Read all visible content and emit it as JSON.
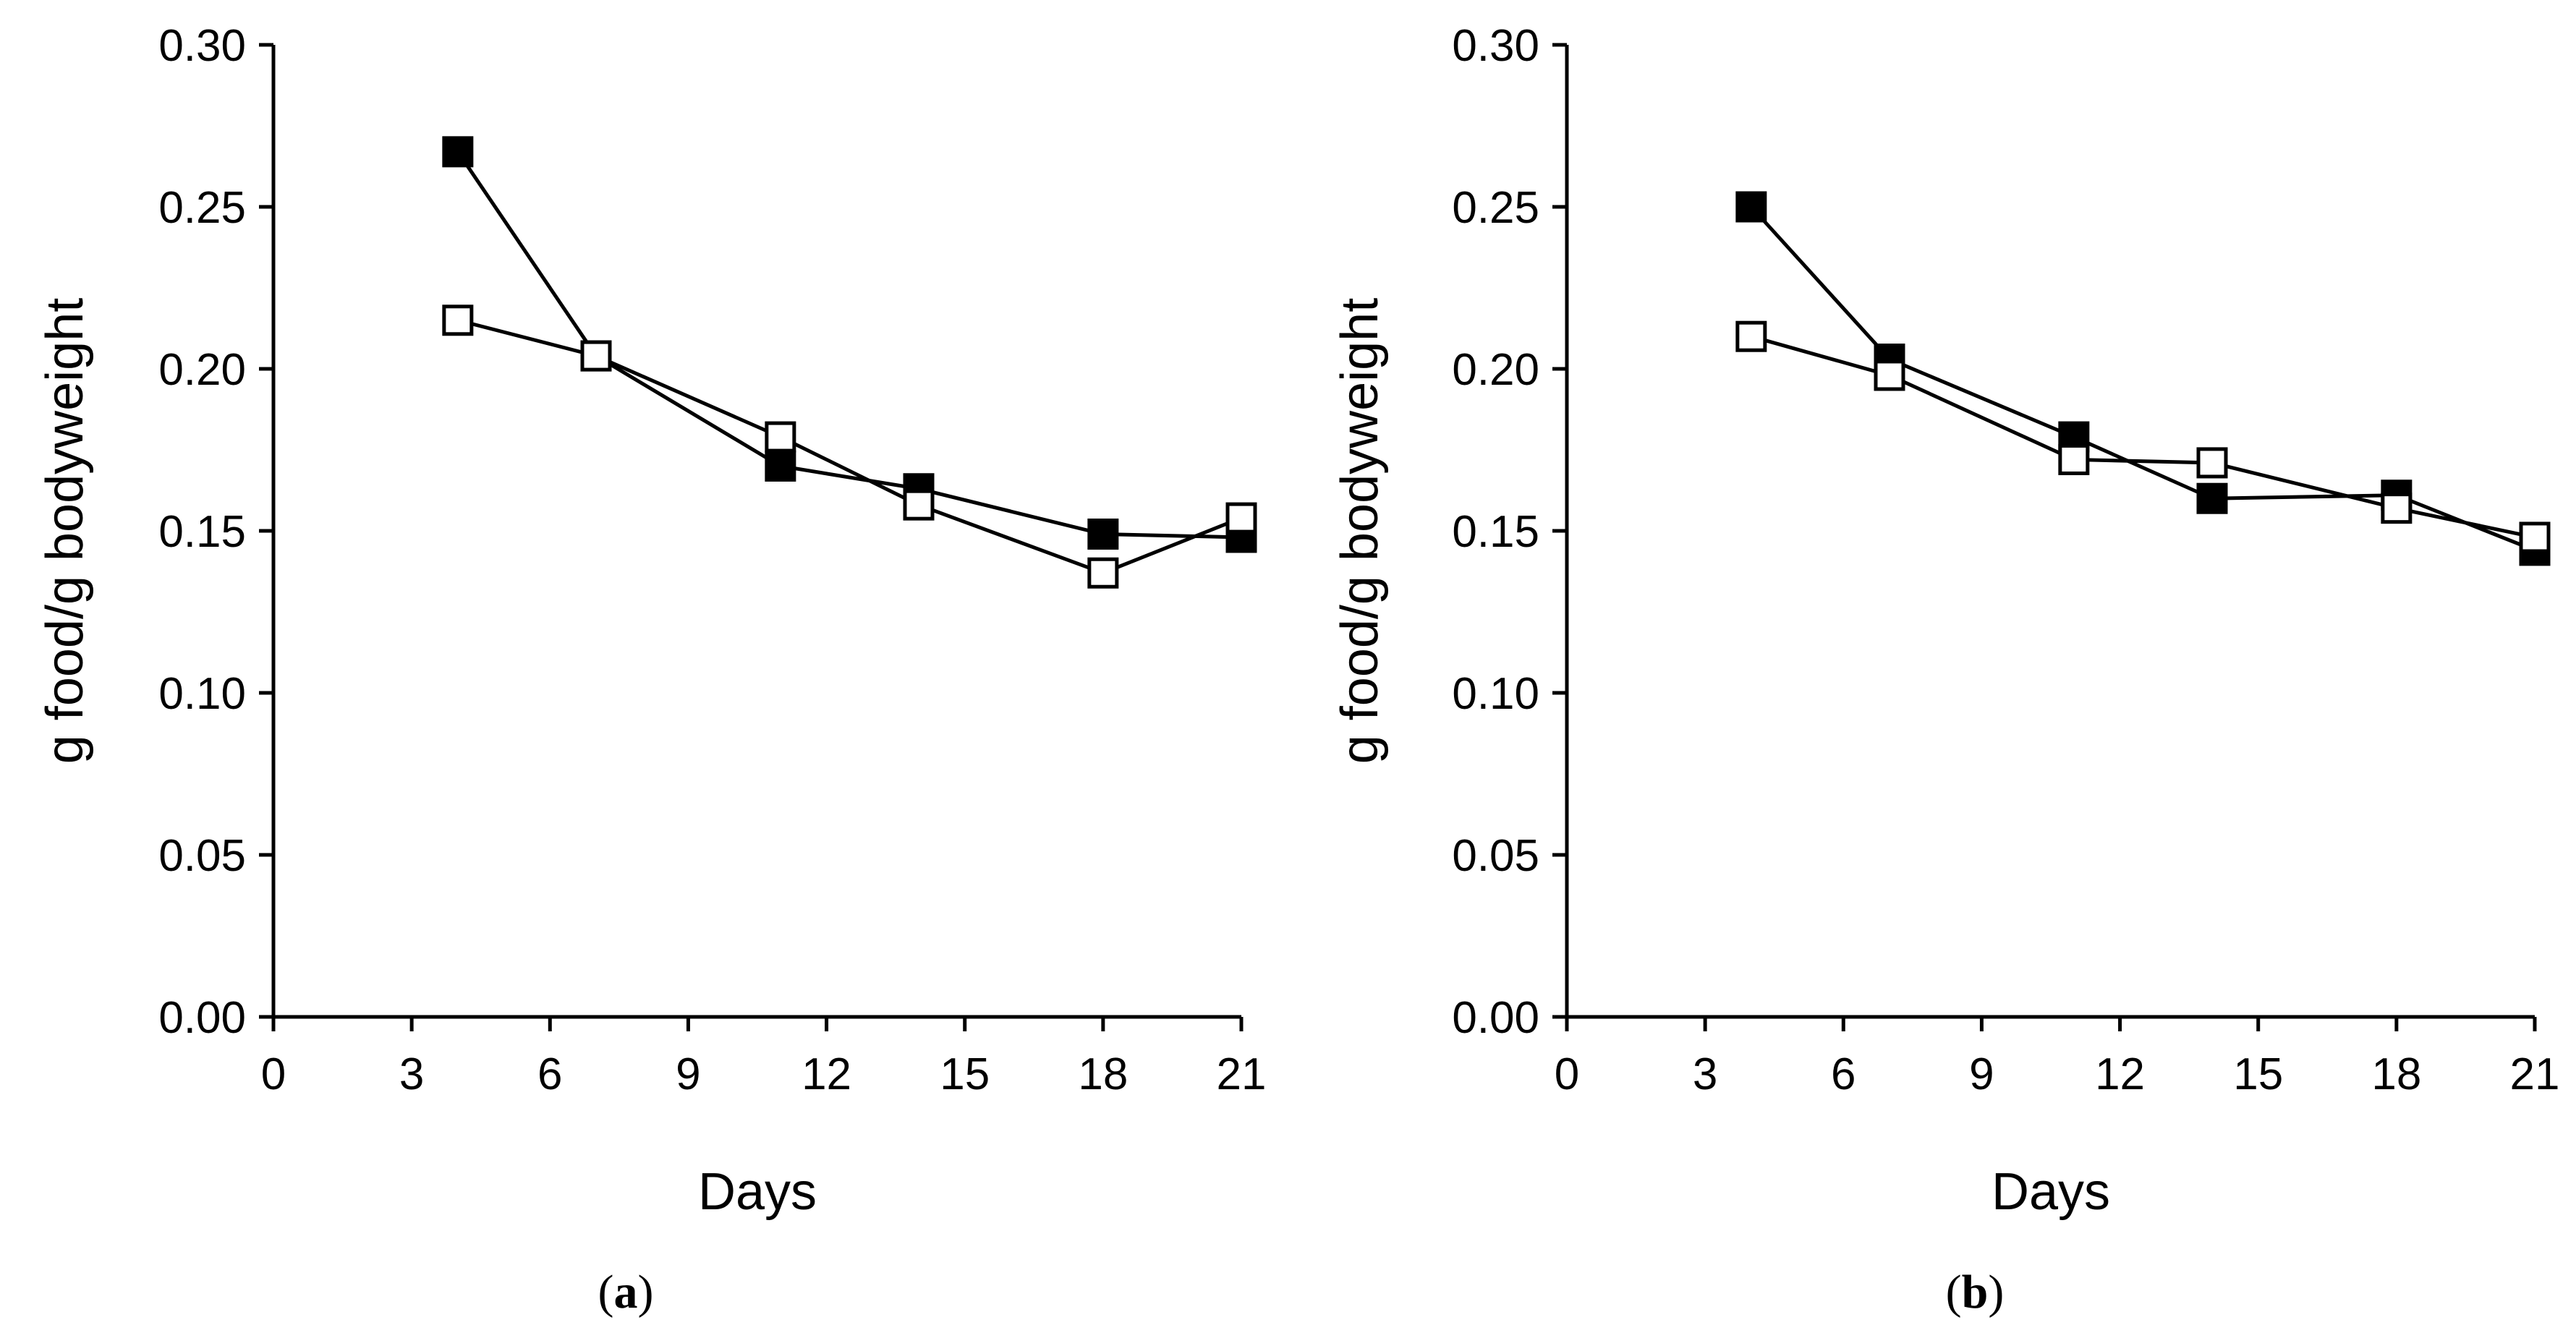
{
  "chart_data": [
    {
      "type": "line",
      "panel_label": "(a)",
      "panel_letter": "a",
      "xlabel": "Days",
      "ylabel": "g food/g bodyweight",
      "xlim": [
        0,
        21
      ],
      "ylim": [
        0,
        0.3
      ],
      "x_ticks": [
        0,
        3,
        6,
        9,
        12,
        15,
        18,
        21
      ],
      "x_tick_labels": [
        "0",
        "3",
        "6",
        "9",
        "12",
        "15",
        "18",
        "21"
      ],
      "y_ticks": [
        0,
        0.05,
        0.1,
        0.15,
        0.2,
        0.25,
        0.3
      ],
      "y_tick_labels": [
        "0.00",
        "0.05",
        "0.10",
        "0.15",
        "0.20",
        "0.25",
        "0.30"
      ],
      "grid": false,
      "series": [
        {
          "name": "filled squares",
          "marker": "filled-square",
          "x": [
            4,
            7,
            11,
            14,
            18,
            21
          ],
          "values": [
            0.267,
            0.204,
            0.17,
            0.163,
            0.149,
            0.148
          ]
        },
        {
          "name": "open squares",
          "marker": "open-square",
          "x": [
            4,
            7,
            11,
            14,
            18,
            21
          ],
          "values": [
            0.215,
            0.204,
            0.179,
            0.158,
            0.137,
            0.154
          ]
        }
      ]
    },
    {
      "type": "line",
      "panel_label": "(b)",
      "panel_letter": "b",
      "xlabel": "Days",
      "ylabel": "g food/g bodyweight",
      "xlim": [
        0,
        21
      ],
      "ylim": [
        0,
        0.3
      ],
      "x_ticks": [
        0,
        3,
        6,
        9,
        12,
        15,
        18,
        21
      ],
      "x_tick_labels": [
        "0",
        "3",
        "6",
        "9",
        "12",
        "15",
        "18",
        "21"
      ],
      "y_ticks": [
        0,
        0.05,
        0.1,
        0.15,
        0.2,
        0.25,
        0.3
      ],
      "y_tick_labels": [
        "0.00",
        "0.05",
        "0.10",
        "0.15",
        "0.20",
        "0.25",
        "0.30"
      ],
      "grid": false,
      "series": [
        {
          "name": "filled squares",
          "marker": "filled-square",
          "x": [
            4,
            7,
            11,
            14,
            18,
            21
          ],
          "values": [
            0.25,
            0.203,
            0.179,
            0.16,
            0.161,
            0.144
          ]
        },
        {
          "name": "open squares",
          "marker": "open-square",
          "x": [
            4,
            7,
            11,
            14,
            18,
            21
          ],
          "values": [
            0.21,
            0.198,
            0.172,
            0.171,
            0.157,
            0.148
          ]
        }
      ]
    }
  ]
}
